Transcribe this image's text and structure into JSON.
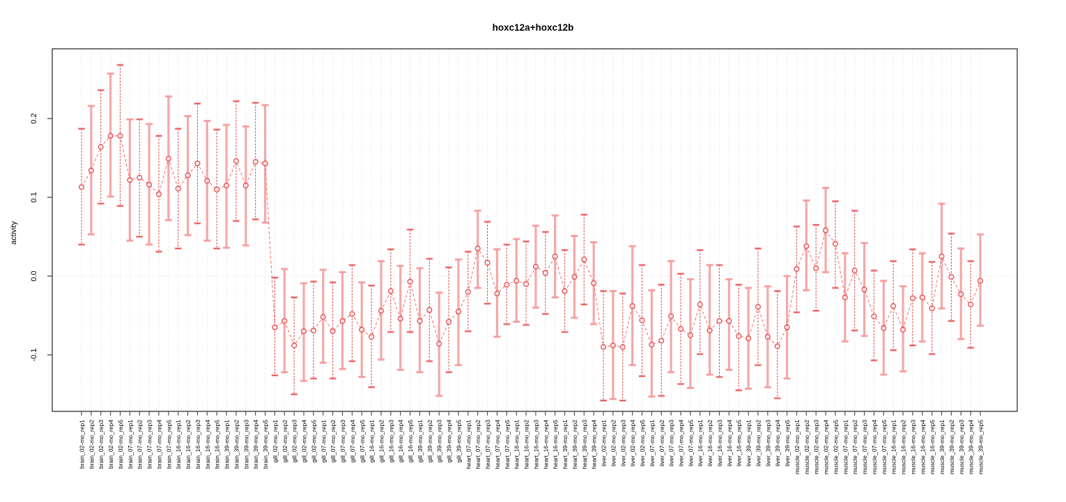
{
  "title": "hoxc12a+hoxc12b",
  "colors": {
    "series_red": "#e4494b",
    "pale_bar": "#f59a9a",
    "line_red": "#ef6a6a",
    "grid": "#d9d9d9",
    "axis": "#555555",
    "tick": "#444444",
    "background": "#ffffff"
  },
  "chart_data": {
    "type": "scatter",
    "title": "hoxc12a+hoxc12b",
    "xlabel": "",
    "ylabel": "activity",
    "ylim": [
      -0.172,
      0.288
    ],
    "yticks": [
      -0.1,
      0.0,
      0.1,
      0.2
    ],
    "grid": "vertical dotted gridline at every category; horizontal dotted line at y=0",
    "legend": "none",
    "marker": "open-circle",
    "line_style": "dashed",
    "error_bars": true,
    "categories": [
      "brain_02-mo_rep1",
      "brain_02-mo_rep2",
      "brain_02-mo_rep3",
      "brain_02-mo_rep4",
      "brain_02-mo_rep5",
      "brain_07-mo_rep1",
      "brain_07-mo_rep2",
      "brain_07-mo_rep3",
      "brain_07-mo_rep4",
      "brain_07-mo_rep5",
      "brain_16-mo_rep1",
      "brain_16-mo_rep2",
      "brain_16-mo_rep3",
      "brain_16-mo_rep4",
      "brain_16-mo_rep5",
      "brain_39-mo_rep1",
      "brain_39-mo_rep2",
      "brain_39-mo_rep3",
      "brain_39-mo_rep4",
      "brain_39-mo_rep5",
      "gill_02-mo_rep1",
      "gill_02-mo_rep2",
      "gill_02-mo_rep3",
      "gill_02-mo_rep4",
      "gill_02-mo_rep5",
      "gill_07-mo_rep1",
      "gill_07-mo_rep2",
      "gill_07-mo_rep3",
      "gill_07-mo_rep4",
      "gill_07-mo_rep5",
      "gill_16-mo_rep1",
      "gill_16-mo_rep2",
      "gill_16-mo_rep3",
      "gill_16-mo_rep4",
      "gill_16-mo_rep5",
      "gill_39-mo_rep1",
      "gill_39-mo_rep2",
      "gill_39-mo_rep3",
      "gill_39-mo_rep4",
      "gill_39-mo_rep5",
      "heart_07-mo_rep1",
      "heart_07-mo_rep2",
      "heart_07-mo_rep3",
      "heart_07-mo_rep4",
      "heart_07-mo_rep5",
      "heart_16-mo_rep1",
      "heart_16-mo_rep2",
      "heart_16-mo_rep3",
      "heart_16-mo_rep4",
      "heart_16-mo_rep5",
      "heart_39-mo_rep1",
      "heart_39-mo_rep2",
      "heart_39-mo_rep3",
      "heart_39-mo_rep4",
      "liver_02-mo_rep1",
      "liver_02-mo_rep2",
      "liver_02-mo_rep3",
      "liver_02-mo_rep4",
      "liver_02-mo_rep5",
      "liver_07-mo_rep1",
      "liver_07-mo_rep2",
      "liver_07-mo_rep3",
      "liver_07-mo_rep4",
      "liver_07-mo_rep5",
      "liver_16-mo_rep1",
      "liver_16-mo_rep2",
      "liver_16-mo_rep3",
      "liver_16-mo_rep4",
      "liver_16-mo_rep5",
      "liver_39-mo_rep1",
      "liver_39-mo_rep2",
      "liver_39-mo_rep3",
      "liver_39-mo_rep4",
      "liver_39-mo_rep5",
      "muscle_02-mo_rep1",
      "muscle_02-mo_rep2",
      "muscle_02-mo_rep3",
      "muscle_02-mo_rep4",
      "muscle_02-mo_rep5",
      "muscle_07-mo_rep1",
      "muscle_07-mo_rep2",
      "muscle_07-mo_rep3",
      "muscle_07-mo_rep4",
      "muscle_07-mo_rep5",
      "muscle_16-mo_rep1",
      "muscle_16-mo_rep2",
      "muscle_16-mo_rep3",
      "muscle_16-mo_rep4",
      "muscle_16-mo_rep5",
      "muscle_39-mo_rep1",
      "muscle_39-mo_rep2",
      "muscle_39-mo_rep3",
      "muscle_39-mo_rep4",
      "muscle_39-mo_rep5"
    ],
    "series": [
      {
        "name": "activity",
        "values": [
          0.113,
          0.134,
          0.164,
          0.178,
          0.178,
          0.122,
          0.125,
          0.116,
          0.104,
          0.149,
          0.111,
          0.128,
          0.143,
          0.121,
          0.11,
          0.115,
          0.146,
          0.115,
          0.145,
          0.143,
          -0.065,
          -0.057,
          -0.088,
          -0.07,
          -0.069,
          -0.052,
          -0.07,
          -0.057,
          -0.048,
          -0.068,
          -0.077,
          -0.044,
          -0.019,
          -0.054,
          -0.007,
          -0.057,
          -0.043,
          -0.086,
          -0.058,
          -0.045,
          -0.02,
          0.035,
          0.017,
          -0.022,
          -0.011,
          -0.006,
          -0.01,
          0.012,
          0.004,
          0.025,
          -0.019,
          -0.001,
          0.021,
          -0.009,
          -0.09,
          -0.088,
          -0.09,
          -0.038,
          -0.056,
          -0.087,
          -0.082,
          -0.051,
          -0.067,
          -0.075,
          -0.036,
          -0.069,
          -0.057,
          -0.057,
          -0.076,
          -0.079,
          -0.039,
          -0.077,
          -0.089,
          -0.065,
          0.009,
          0.038,
          0.01,
          0.058,
          0.041,
          -0.027,
          0.007,
          -0.017,
          -0.051,
          -0.066,
          -0.038,
          -0.068,
          -0.028,
          -0.027,
          -0.041,
          0.025,
          -0.001,
          -0.023,
          -0.036,
          -0.006
        ],
        "error_low": [
          0.04,
          0.053,
          0.092,
          0.101,
          0.089,
          0.045,
          0.05,
          0.04,
          0.031,
          0.071,
          0.035,
          0.052,
          0.067,
          0.045,
          0.035,
          0.036,
          0.07,
          0.039,
          0.072,
          0.068,
          -0.126,
          -0.122,
          -0.15,
          -0.133,
          -0.13,
          -0.11,
          -0.13,
          -0.118,
          -0.108,
          -0.128,
          -0.141,
          -0.106,
          -0.071,
          -0.119,
          -0.071,
          -0.122,
          -0.108,
          -0.152,
          -0.122,
          -0.113,
          -0.07,
          -0.015,
          -0.035,
          -0.077,
          -0.061,
          -0.058,
          -0.062,
          -0.04,
          -0.048,
          -0.027,
          -0.071,
          -0.053,
          -0.036,
          -0.061,
          -0.158,
          -0.156,
          -0.158,
          -0.113,
          -0.127,
          -0.153,
          -0.152,
          -0.122,
          -0.137,
          -0.142,
          -0.099,
          -0.125,
          -0.128,
          -0.119,
          -0.145,
          -0.143,
          -0.113,
          -0.141,
          -0.155,
          -0.13,
          -0.046,
          -0.018,
          -0.044,
          0.005,
          -0.015,
          -0.083,
          -0.069,
          -0.076,
          -0.107,
          -0.125,
          -0.094,
          -0.121,
          -0.088,
          -0.083,
          -0.099,
          -0.041,
          -0.057,
          -0.08,
          -0.091,
          -0.063
        ],
        "error_high": [
          0.187,
          0.216,
          0.236,
          0.257,
          0.268,
          0.199,
          0.199,
          0.193,
          0.178,
          0.228,
          0.187,
          0.203,
          0.219,
          0.197,
          0.186,
          0.192,
          0.222,
          0.19,
          0.22,
          0.217,
          -0.002,
          0.009,
          -0.027,
          -0.009,
          -0.007,
          0.008,
          -0.008,
          0.005,
          0.014,
          -0.008,
          -0.012,
          0.019,
          0.034,
          0.013,
          0.059,
          0.01,
          0.022,
          -0.021,
          0.011,
          0.021,
          0.031,
          0.083,
          0.069,
          0.034,
          0.04,
          0.047,
          0.044,
          0.064,
          0.056,
          0.077,
          0.033,
          0.051,
          0.078,
          0.043,
          -0.019,
          -0.019,
          -0.022,
          0.038,
          0.014,
          -0.018,
          -0.011,
          0.019,
          0.003,
          -0.004,
          0.033,
          0.014,
          0.014,
          -0.004,
          -0.011,
          -0.015,
          0.035,
          -0.013,
          -0.019,
          0.0,
          0.063,
          0.096,
          0.065,
          0.112,
          0.095,
          0.029,
          0.083,
          0.042,
          0.007,
          -0.006,
          0.019,
          -0.013,
          0.034,
          0.029,
          0.018,
          0.092,
          0.054,
          0.035,
          0.019,
          0.053
        ]
      }
    ]
  }
}
